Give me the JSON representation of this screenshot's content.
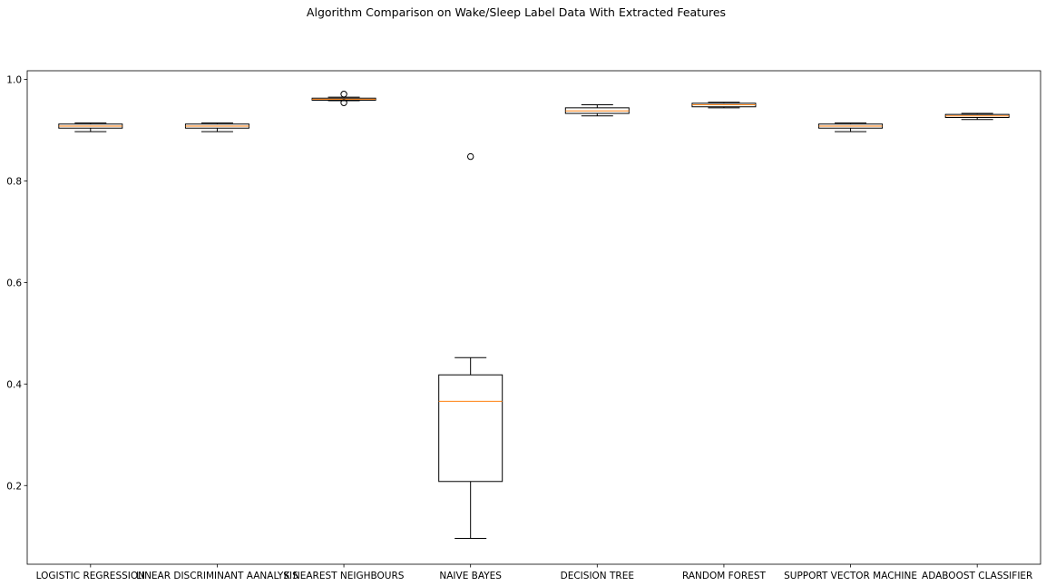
{
  "chart_data": {
    "type": "box",
    "title": "Algorithm Comparison on Wake/Sleep Label Data With Extracted Features",
    "xlabel": "",
    "ylabel": "",
    "ylim": [
      0.045,
      1.017
    ],
    "yticks": [
      0.2,
      0.4,
      0.6,
      0.8,
      1.0
    ],
    "ytick_labels": [
      "0.2",
      "0.4",
      "0.6",
      "0.8",
      "1.0"
    ],
    "grid": false,
    "categories": [
      "LOGISTIC REGRESSION",
      "LINEAR DISCRIMINANT AANALYSIS",
      "K NEAREST NEIGHBOURS",
      "NAIVE BAYES",
      "DECISION TREE",
      "RANDOM FOREST",
      "SUPPORT VECTOR MACHINE",
      "ADABOOST CLASSIFIER"
    ],
    "boxes": [
      {
        "whislo": 0.897,
        "q1": 0.904,
        "med": 0.908,
        "q3": 0.912,
        "whishi": 0.914,
        "fliers": []
      },
      {
        "whislo": 0.897,
        "q1": 0.904,
        "med": 0.908,
        "q3": 0.912,
        "whishi": 0.914,
        "fliers": []
      },
      {
        "whislo": 0.958,
        "q1": 0.959,
        "med": 0.961,
        "q3": 0.963,
        "whishi": 0.965,
        "fliers": [
          0.971,
          0.954
        ]
      },
      {
        "whislo": 0.096,
        "q1": 0.208,
        "med": 0.366,
        "q3": 0.418,
        "whishi": 0.452,
        "fliers": [
          0.848
        ]
      },
      {
        "whislo": 0.928,
        "q1": 0.933,
        "med": 0.938,
        "q3": 0.944,
        "whishi": 0.95,
        "fliers": []
      },
      {
        "whislo": 0.944,
        "q1": 0.946,
        "med": 0.95,
        "q3": 0.953,
        "whishi": 0.955,
        "fliers": []
      },
      {
        "whislo": 0.897,
        "q1": 0.904,
        "med": 0.908,
        "q3": 0.912,
        "whishi": 0.914,
        "fliers": []
      },
      {
        "whislo": 0.921,
        "q1": 0.925,
        "med": 0.928,
        "q3": 0.931,
        "whishi": 0.933,
        "fliers": []
      }
    ],
    "colors": {
      "box": "#000000",
      "median": "#ff7f0e",
      "flier": "#000000"
    }
  }
}
